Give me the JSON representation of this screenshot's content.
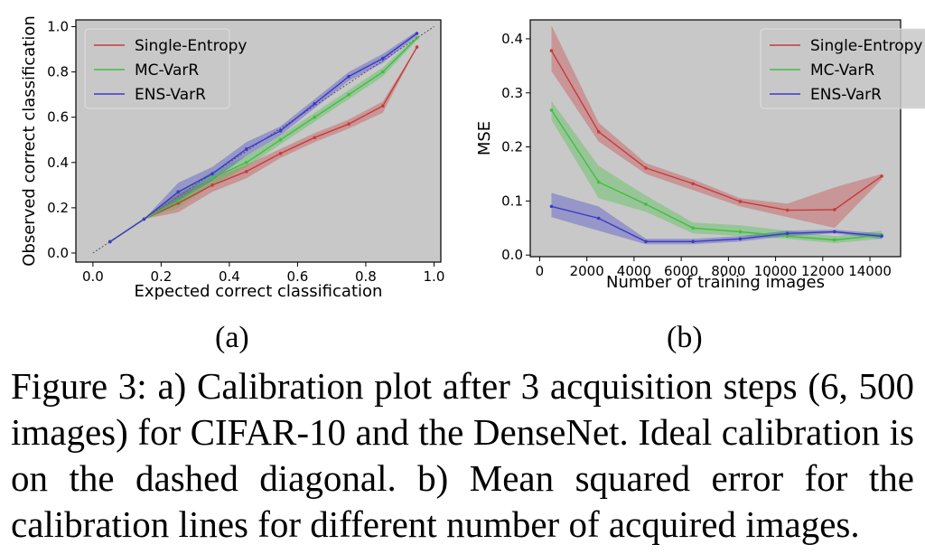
{
  "figure": {
    "subfig_a_label": "(a)",
    "subfig_b_label": "(b)",
    "caption": "Figure 3: a) Calibration plot after 3 acquisition steps (6, 500 images) for CIFAR-10 and the DenseNet. Ideal calibration is on the dashed diagonal. b) Mean squared error for the calibration lines for different number of acquired images."
  },
  "colors": {
    "plot_bg": "#c8c8c8",
    "single_entropy": "#c93a3a",
    "mc_varr": "#3fbf3f",
    "ens_varr": "#3a3ac9"
  },
  "chart_data": [
    {
      "id": "a",
      "type": "line",
      "title": "",
      "xlabel": "Expected correct classification",
      "ylabel": "Observed correct classification",
      "xlim": [
        -0.05,
        1.02
      ],
      "ylim": [
        -0.04,
        1.03
      ],
      "xticks": [
        0.0,
        0.2,
        0.4,
        0.6,
        0.8,
        1.0
      ],
      "yticks": [
        0.0,
        0.2,
        0.4,
        0.6,
        0.8,
        1.0
      ],
      "xtick_labels": [
        "0.0",
        "0.2",
        "0.4",
        "0.6",
        "0.8",
        "1.0"
      ],
      "ytick_labels": [
        "0.0",
        "0.2",
        "0.4",
        "0.6",
        "0.8",
        "1.0"
      ],
      "grid": false,
      "legend_position": "top-left",
      "reference_line": {
        "style": "dashed",
        "x": [
          0,
          1
        ],
        "y": [
          0,
          1
        ]
      },
      "series": [
        {
          "name": "Single-Entropy",
          "color_key": "single_entropy",
          "x": [
            0.05,
            0.15,
            0.25,
            0.35,
            0.45,
            0.55,
            0.65,
            0.75,
            0.85,
            0.95
          ],
          "y": [
            0.05,
            0.15,
            0.22,
            0.3,
            0.36,
            0.44,
            0.51,
            0.57,
            0.65,
            0.91
          ],
          "lower": [
            0.05,
            0.15,
            0.18,
            0.27,
            0.33,
            0.42,
            0.49,
            0.55,
            0.62,
            0.91
          ],
          "upper": [
            0.05,
            0.15,
            0.26,
            0.33,
            0.39,
            0.46,
            0.53,
            0.59,
            0.67,
            0.91
          ]
        },
        {
          "name": "MC-VarR",
          "color_key": "mc_varr",
          "x": [
            0.05,
            0.15,
            0.25,
            0.35,
            0.45,
            0.55,
            0.65,
            0.75,
            0.85,
            0.95
          ],
          "y": [
            0.05,
            0.15,
            0.23,
            0.33,
            0.4,
            0.5,
            0.6,
            0.7,
            0.8,
            0.95
          ],
          "lower": [
            0.05,
            0.15,
            0.2,
            0.3,
            0.38,
            0.48,
            0.58,
            0.68,
            0.78,
            0.94
          ],
          "upper": [
            0.05,
            0.15,
            0.27,
            0.36,
            0.43,
            0.52,
            0.62,
            0.72,
            0.82,
            0.96
          ]
        },
        {
          "name": "ENS-VarR",
          "color_key": "ens_varr",
          "x": [
            0.05,
            0.15,
            0.25,
            0.35,
            0.45,
            0.55,
            0.65,
            0.75,
            0.85,
            0.95
          ],
          "y": [
            0.05,
            0.15,
            0.27,
            0.35,
            0.46,
            0.54,
            0.66,
            0.78,
            0.86,
            0.97
          ],
          "lower": [
            0.05,
            0.15,
            0.23,
            0.32,
            0.43,
            0.52,
            0.64,
            0.76,
            0.84,
            0.96
          ],
          "upper": [
            0.05,
            0.15,
            0.31,
            0.38,
            0.49,
            0.56,
            0.68,
            0.8,
            0.88,
            0.98
          ]
        }
      ]
    },
    {
      "id": "b",
      "type": "line",
      "title": "",
      "xlabel": "Number of training images",
      "ylabel": "MSE",
      "xlim": [
        -400,
        15300
      ],
      "ylim": [
        -0.003,
        0.435
      ],
      "xticks": [
        0,
        2000,
        4000,
        6000,
        8000,
        10000,
        12000,
        14000
      ],
      "yticks": [
        0.0,
        0.1,
        0.2,
        0.3,
        0.4
      ],
      "xtick_labels": [
        "0",
        "2000",
        "4000",
        "6000",
        "8000",
        "10000",
        "12000",
        "14000"
      ],
      "ytick_labels": [
        "0.0",
        "0.1",
        "0.2",
        "0.3",
        "0.4"
      ],
      "grid": false,
      "legend_position": "top-right",
      "series": [
        {
          "name": "Single-Entropy",
          "color_key": "single_entropy",
          "x": [
            500,
            2500,
            4500,
            6500,
            8500,
            10500,
            12500,
            14500
          ],
          "y": [
            0.378,
            0.228,
            0.161,
            0.132,
            0.099,
            0.083,
            0.084,
            0.146
          ],
          "lower": [
            0.34,
            0.21,
            0.15,
            0.12,
            0.09,
            0.07,
            0.05,
            0.14
          ],
          "upper": [
            0.425,
            0.245,
            0.17,
            0.14,
            0.105,
            0.095,
            0.125,
            0.15
          ]
        },
        {
          "name": "MC-VarR",
          "color_key": "mc_varr",
          "x": [
            500,
            2500,
            4500,
            6500,
            8500,
            10500,
            12500,
            14500
          ],
          "y": [
            0.268,
            0.135,
            0.094,
            0.05,
            0.043,
            0.035,
            0.028,
            0.037
          ],
          "lower": [
            0.25,
            0.105,
            0.08,
            0.04,
            0.035,
            0.03,
            0.022,
            0.03
          ],
          "upper": [
            0.285,
            0.165,
            0.11,
            0.06,
            0.055,
            0.045,
            0.035,
            0.045
          ]
        },
        {
          "name": "ENS-VarR",
          "color_key": "ens_varr",
          "x": [
            500,
            2500,
            4500,
            6500,
            8500,
            10500,
            12500,
            14500
          ],
          "y": [
            0.09,
            0.068,
            0.025,
            0.025,
            0.03,
            0.04,
            0.043,
            0.035
          ],
          "lower": [
            0.07,
            0.045,
            0.02,
            0.02,
            0.025,
            0.035,
            0.04,
            0.03
          ],
          "upper": [
            0.115,
            0.09,
            0.03,
            0.03,
            0.035,
            0.045,
            0.047,
            0.04
          ]
        }
      ]
    }
  ]
}
